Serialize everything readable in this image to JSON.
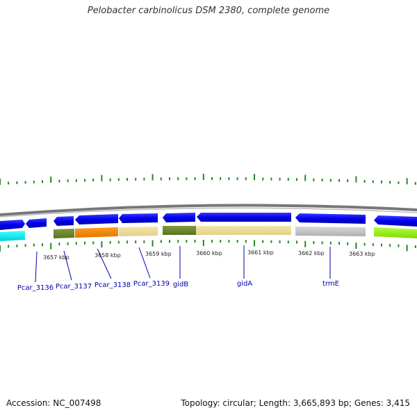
{
  "title": "Pelobacter carbinolicus DSM 2380, complete genome",
  "footer": {
    "accession": "Accession: NC_007498",
    "info": "Topology: circular; Length: 3,665,893 bp; Genes: 3,415"
  },
  "colors": {
    "forward_genes": "#0000ee",
    "backbone": "#888888",
    "tick_marks": "#228822",
    "label_lines": "#0000aa"
  },
  "kbp_labels": [
    "3657 kbp",
    "3658 kbp",
    "3659 kbp",
    "3660 kbp",
    "3661 kbp",
    "3662 kbp",
    "3663 kbp"
  ],
  "gene_labels": [
    "Pcar_3136",
    "Pcar_3137",
    "Pcar_3138",
    "Pcar_3139",
    "gidB",
    "gidA",
    "trmE"
  ]
}
